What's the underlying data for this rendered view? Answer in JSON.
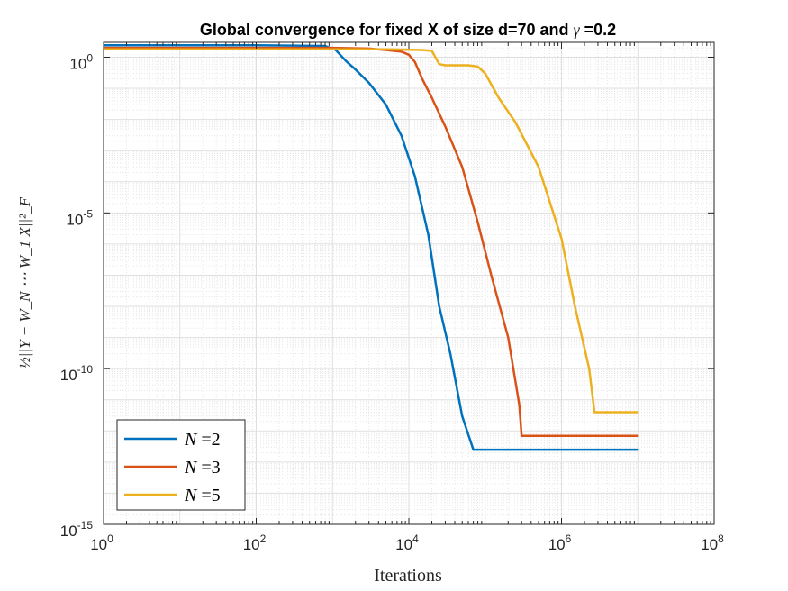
{
  "chart_data": {
    "type": "line",
    "title_prefix": "Global convergence for fixed X of size d=70 and ",
    "title_gamma": "γ",
    "title_suffix": " =0.2",
    "xlabel": "Iterations",
    "ylabel": "½||Y − W_N ⋯ W_1 X||²_F",
    "x_scale": "log",
    "y_scale": "log",
    "xlim": [
      1,
      100000000
    ],
    "ylim": [
      1e-15,
      3
    ],
    "x_ticks": [
      {
        "base": "10",
        "exp": "0"
      },
      {
        "base": "10",
        "exp": "2"
      },
      {
        "base": "10",
        "exp": "4"
      },
      {
        "base": "10",
        "exp": "6"
      },
      {
        "base": "10",
        "exp": "8"
      }
    ],
    "y_ticks": [
      {
        "base": "10",
        "exp": "-15"
      },
      {
        "base": "10",
        "exp": "-10"
      },
      {
        "base": "10",
        "exp": "-5"
      },
      {
        "base": "10",
        "exp": "0"
      }
    ],
    "grid": true,
    "legend_position": "bottom-left",
    "series": [
      {
        "name": "N =2",
        "legend_var": "N",
        "legend_val": " =2",
        "color": "#0072BD",
        "x": [
          1,
          100,
          800,
          1100,
          1500,
          2000,
          3000,
          5000,
          8000,
          12000,
          18000,
          25000,
          35000,
          50000,
          70000,
          75000,
          80000,
          10000000
        ],
        "y": [
          2.4,
          2.4,
          2.3,
          1.7,
          0.75,
          0.4,
          0.15,
          0.03,
          0.003,
          0.00015,
          2e-06,
          1e-08,
          3e-10,
          3e-12,
          2.5e-13,
          2.5e-13,
          2.5e-13,
          2.5e-13
        ]
      },
      {
        "name": "N =3",
        "legend_var": "N",
        "legend_val": " =3",
        "color": "#D95319",
        "x": [
          1,
          1000,
          3000,
          5000,
          8000,
          10000,
          12000,
          15000,
          20000,
          30000,
          50000,
          80000,
          120000,
          200000,
          280000,
          300000,
          320000,
          10000000
        ],
        "y": [
          2.0,
          2.0,
          1.9,
          1.7,
          1.5,
          1.2,
          0.7,
          0.2,
          0.05,
          0.006,
          0.0003,
          5e-06,
          1e-07,
          1e-09,
          7e-12,
          7e-13,
          7e-13,
          7e-13
        ]
      },
      {
        "name": "N =5",
        "legend_var": "N",
        "legend_val": " =5",
        "color": "#EDB120",
        "x": [
          1,
          5000,
          15000,
          20000,
          25000,
          30000,
          60000,
          80000,
          100000,
          150000,
          250000,
          500000,
          1000000,
          1500000,
          2300000,
          2700000,
          2900000,
          10000000
        ],
        "y": [
          1.8,
          1.8,
          1.7,
          1.6,
          0.6,
          0.55,
          0.55,
          0.5,
          0.3,
          0.05,
          0.008,
          0.0003,
          1.5e-06,
          1e-08,
          1e-10,
          4e-12,
          4e-12,
          4e-12
        ]
      }
    ]
  }
}
